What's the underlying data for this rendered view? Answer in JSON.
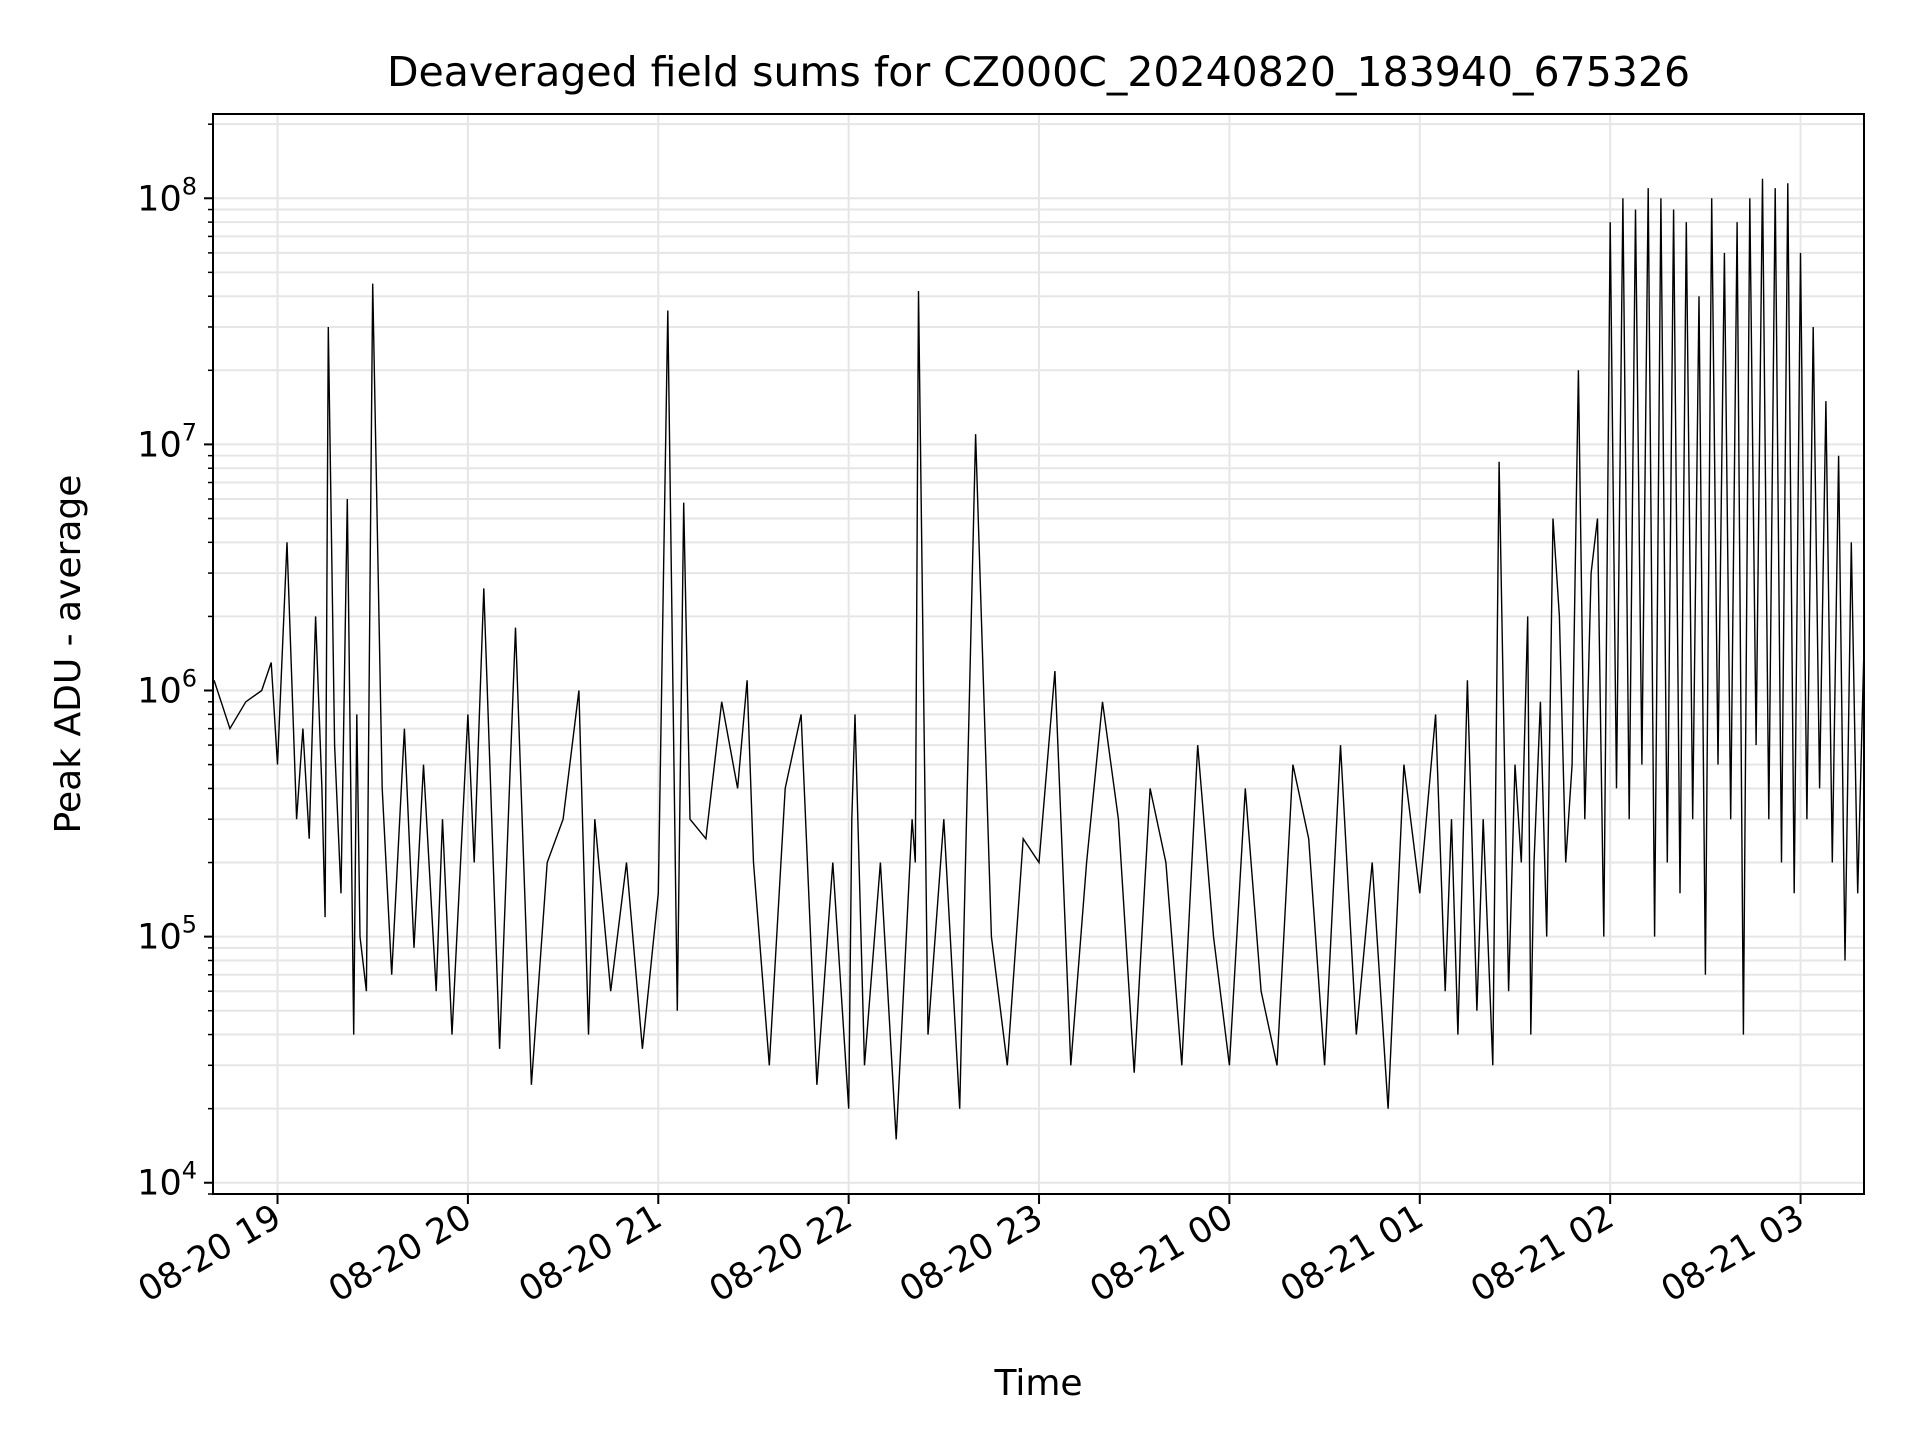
{
  "chart_data": {
    "type": "line",
    "title": "Deaveraged field sums for CZ000C_20240820_183940_675326",
    "xlabel": "Time",
    "ylabel": "Peak ADU - average",
    "yscale": "log",
    "ylim": [
      9000,
      220000000
    ],
    "xlim": [
      "2024-08-20 18:39:40",
      "2024-08-21 03:20:00"
    ],
    "grid": true,
    "line_color": "#000000",
    "grid_color": "#e6e6e6",
    "x_ticks": [
      {
        "time": "2024-08-20 19:00",
        "label": "08-20 19"
      },
      {
        "time": "2024-08-20 20:00",
        "label": "08-20 20"
      },
      {
        "time": "2024-08-20 21:00",
        "label": "08-20 21"
      },
      {
        "time": "2024-08-20 22:00",
        "label": "08-20 22"
      },
      {
        "time": "2024-08-20 23:00",
        "label": "08-20 23"
      },
      {
        "time": "2024-08-21 00:00",
        "label": "08-21 00"
      },
      {
        "time": "2024-08-21 01:00",
        "label": "08-21 01"
      },
      {
        "time": "2024-08-21 02:00",
        "label": "08-21 02"
      },
      {
        "time": "2024-08-21 03:00",
        "label": "08-21 03"
      }
    ],
    "y_ticks": [
      {
        "value": 10000,
        "base": "10",
        "exp": "4"
      },
      {
        "value": 100000,
        "base": "10",
        "exp": "5"
      },
      {
        "value": 1000000,
        "base": "10",
        "exp": "6"
      },
      {
        "value": 10000000,
        "base": "10",
        "exp": "7"
      },
      {
        "value": 100000000,
        "base": "10",
        "exp": "8"
      }
    ],
    "series": [
      {
        "x": [
          "2024-08-20 18:40",
          "2024-08-20 18:45",
          "2024-08-20 18:50",
          "2024-08-20 18:55",
          "2024-08-20 18:58",
          "2024-08-20 19:00",
          "2024-08-20 19:03",
          "2024-08-20 19:06",
          "2024-08-20 19:08",
          "2024-08-20 19:10",
          "2024-08-20 19:12",
          "2024-08-20 19:14",
          "2024-08-20 19:15",
          "2024-08-20 19:16",
          "2024-08-20 19:18",
          "2024-08-20 19:20",
          "2024-08-20 19:22",
          "2024-08-20 19:24",
          "2024-08-20 19:25",
          "2024-08-20 19:26",
          "2024-08-20 19:28",
          "2024-08-20 19:30",
          "2024-08-20 19:33",
          "2024-08-20 19:36",
          "2024-08-20 19:40",
          "2024-08-20 19:43",
          "2024-08-20 19:46",
          "2024-08-20 19:50",
          "2024-08-20 19:52",
          "2024-08-20 19:55",
          "2024-08-20 20:00",
          "2024-08-20 20:02",
          "2024-08-20 20:05",
          "2024-08-20 20:10",
          "2024-08-20 20:15",
          "2024-08-20 20:20",
          "2024-08-20 20:25",
          "2024-08-20 20:30",
          "2024-08-20 20:35",
          "2024-08-20 20:38",
          "2024-08-20 20:40",
          "2024-08-20 20:45",
          "2024-08-20 20:50",
          "2024-08-20 20:55",
          "2024-08-20 21:00",
          "2024-08-20 21:03",
          "2024-08-20 21:06",
          "2024-08-20 21:08",
          "2024-08-20 21:10",
          "2024-08-20 21:15",
          "2024-08-20 21:20",
          "2024-08-20 21:25",
          "2024-08-20 21:28",
          "2024-08-20 21:30",
          "2024-08-20 21:35",
          "2024-08-20 21:40",
          "2024-08-20 21:45",
          "2024-08-20 21:50",
          "2024-08-20 21:55",
          "2024-08-20 22:00",
          "2024-08-20 22:01",
          "2024-08-20 22:02",
          "2024-08-20 22:05",
          "2024-08-20 22:10",
          "2024-08-20 22:15",
          "2024-08-20 22:20",
          "2024-08-20 22:21",
          "2024-08-20 22:22",
          "2024-08-20 22:25",
          "2024-08-20 22:30",
          "2024-08-20 22:35",
          "2024-08-20 22:40",
          "2024-08-20 22:45",
          "2024-08-20 22:50",
          "2024-08-20 22:55",
          "2024-08-20 23:00",
          "2024-08-20 23:05",
          "2024-08-20 23:10",
          "2024-08-20 23:15",
          "2024-08-20 23:20",
          "2024-08-20 23:25",
          "2024-08-20 23:30",
          "2024-08-20 23:35",
          "2024-08-20 23:40",
          "2024-08-20 23:45",
          "2024-08-20 23:50",
          "2024-08-20 23:55",
          "2024-08-21 00:00",
          "2024-08-21 00:05",
          "2024-08-21 00:10",
          "2024-08-21 00:15",
          "2024-08-21 00:20",
          "2024-08-21 00:25",
          "2024-08-21 00:30",
          "2024-08-21 00:35",
          "2024-08-21 00:40",
          "2024-08-21 00:45",
          "2024-08-21 00:50",
          "2024-08-21 00:55",
          "2024-08-21 01:00",
          "2024-08-21 01:05",
          "2024-08-21 01:08",
          "2024-08-21 01:10",
          "2024-08-21 01:12",
          "2024-08-21 01:15",
          "2024-08-21 01:18",
          "2024-08-21 01:20",
          "2024-08-21 01:23",
          "2024-08-21 01:25",
          "2024-08-21 01:28",
          "2024-08-21 01:30",
          "2024-08-21 01:32",
          "2024-08-21 01:34",
          "2024-08-21 01:35",
          "2024-08-21 01:36",
          "2024-08-21 01:38",
          "2024-08-21 01:40",
          "2024-08-21 01:42",
          "2024-08-21 01:44",
          "2024-08-21 01:46",
          "2024-08-21 01:48",
          "2024-08-21 01:50",
          "2024-08-21 01:52",
          "2024-08-21 01:54",
          "2024-08-21 01:56",
          "2024-08-21 01:58",
          "2024-08-21 02:00",
          "2024-08-21 02:02",
          "2024-08-21 02:04",
          "2024-08-21 02:06",
          "2024-08-21 02:08",
          "2024-08-21 02:10",
          "2024-08-21 02:12",
          "2024-08-21 02:14",
          "2024-08-21 02:16",
          "2024-08-21 02:18",
          "2024-08-21 02:20",
          "2024-08-21 02:22",
          "2024-08-21 02:24",
          "2024-08-21 02:26",
          "2024-08-21 02:28",
          "2024-08-21 02:30",
          "2024-08-21 02:32",
          "2024-08-21 02:34",
          "2024-08-21 02:36",
          "2024-08-21 02:38",
          "2024-08-21 02:40",
          "2024-08-21 02:42",
          "2024-08-21 02:44",
          "2024-08-21 02:46",
          "2024-08-21 02:48",
          "2024-08-21 02:50",
          "2024-08-21 02:52",
          "2024-08-21 02:54",
          "2024-08-21 02:56",
          "2024-08-21 02:58",
          "2024-08-21 03:00",
          "2024-08-21 03:02",
          "2024-08-21 03:04",
          "2024-08-21 03:06",
          "2024-08-21 03:08",
          "2024-08-21 03:10",
          "2024-08-21 03:12",
          "2024-08-21 03:14",
          "2024-08-21 03:16",
          "2024-08-21 03:18",
          "2024-08-21 03:20"
        ],
        "y": [
          1100000,
          700000,
          900000,
          1000000,
          1300000,
          500000,
          4000000,
          300000,
          700000,
          250000,
          2000000,
          400000,
          120000,
          30000000,
          600000,
          150000,
          6000000,
          40000,
          800000,
          100000,
          60000,
          45000000,
          400000,
          70000,
          700000,
          90000,
          500000,
          60000,
          300000,
          40000,
          800000,
          200000,
          2600000,
          35000,
          1800000,
          25000,
          200000,
          300000,
          1000000,
          40000,
          300000,
          60000,
          200000,
          35000,
          150000,
          35000000,
          50000,
          5800000,
          300000,
          250000,
          900000,
          400000,
          1100000,
          200000,
          30000,
          400000,
          800000,
          25000,
          200000,
          20000,
          300000,
          800000,
          30000,
          200000,
          15000,
          300000,
          200000,
          42000000,
          40000,
          300000,
          20000,
          11000000,
          100000,
          30000,
          250000,
          200000,
          1200000,
          30000,
          200000,
          900000,
          300000,
          28000,
          400000,
          200000,
          30000,
          600000,
          100000,
          30000,
          400000,
          60000,
          30000,
          500000,
          250000,
          30000,
          600000,
          40000,
          200000,
          20000,
          500000,
          150000,
          800000,
          60000,
          300000,
          40000,
          1100000,
          50000,
          300000,
          30000,
          8500000,
          60000,
          500000,
          200000,
          2000000,
          40000,
          200000,
          900000,
          100000,
          5000000,
          2000000,
          200000,
          500000,
          20000000,
          300000,
          3000000,
          5000000,
          100000,
          80000000,
          400000,
          100000000,
          300000,
          90000000,
          500000,
          110000000,
          100000,
          100000000,
          200000,
          90000000,
          150000,
          80000000,
          300000,
          40000000,
          70000,
          100000000,
          500000,
          60000000,
          300000,
          80000000,
          40000,
          100000000,
          600000,
          120000000,
          300000,
          110000000,
          200000,
          115000000,
          150000,
          60000000,
          300000,
          30000000,
          400000,
          15000000,
          200000,
          9000000,
          80000,
          4000000,
          150000,
          1500000
        ]
      }
    ]
  }
}
